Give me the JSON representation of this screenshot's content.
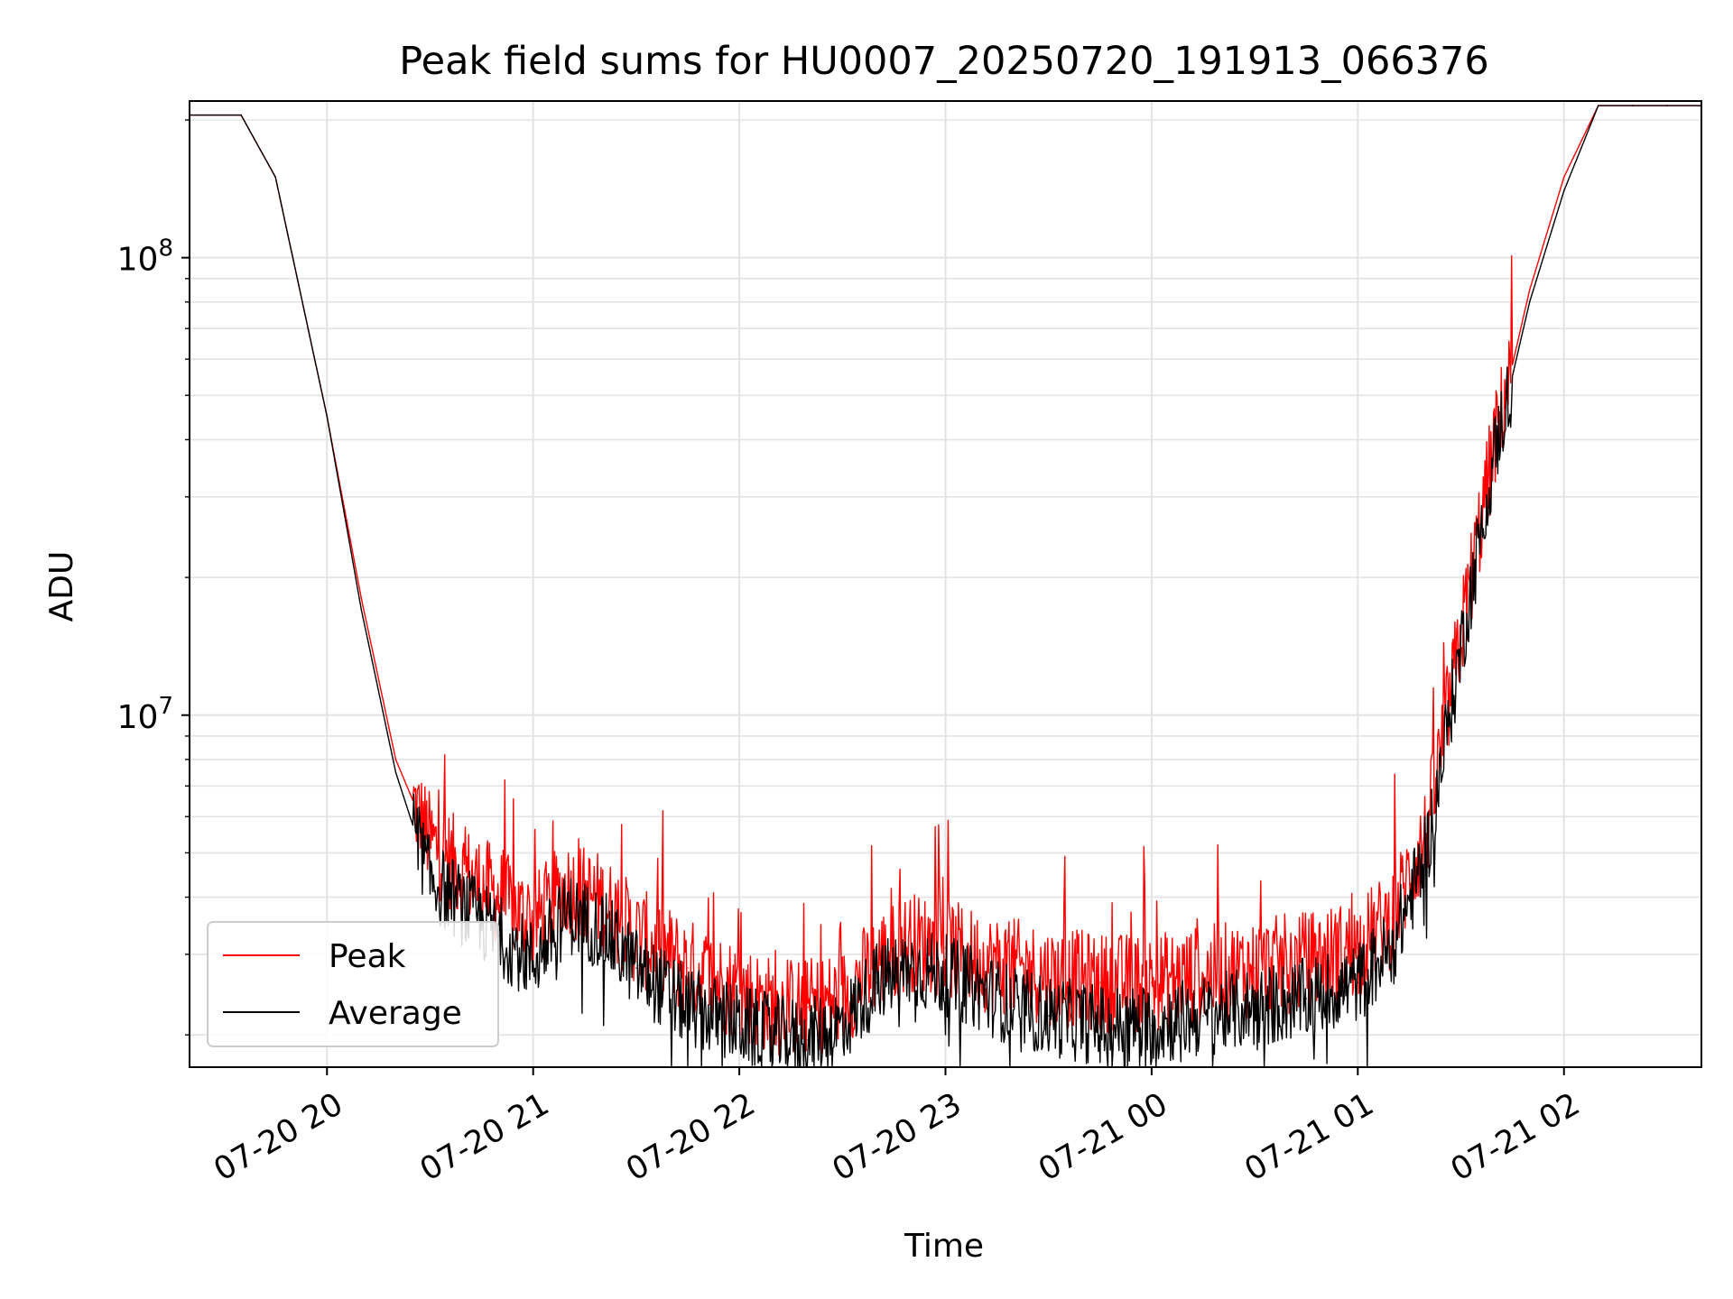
{
  "chart_data": {
    "type": "line",
    "title": "Peak field sums for HU0007_20250720_191913_066376",
    "xlabel": "Time",
    "ylabel": "ADU",
    "y_scale": "log",
    "grid": true,
    "legend_position": "lower-left",
    "xlim": [
      "2025-07-20 19:20",
      "2025-07-21 02:40"
    ],
    "ylim": [
      1700000,
      220000000
    ],
    "x_ticks": [
      {
        "value": "2025-07-20 20:00",
        "label": "07-20 20"
      },
      {
        "value": "2025-07-20 21:00",
        "label": "07-20 21"
      },
      {
        "value": "2025-07-20 22:00",
        "label": "07-20 22"
      },
      {
        "value": "2025-07-20 23:00",
        "label": "07-20 23"
      },
      {
        "value": "2025-07-21 00:00",
        "label": "07-21 00"
      },
      {
        "value": "2025-07-21 01:00",
        "label": "07-21 01"
      },
      {
        "value": "2025-07-21 02:00",
        "label": "07-21 02"
      }
    ],
    "y_ticks": [
      {
        "value": 10000000,
        "label_base": "10",
        "label_exp": "7"
      },
      {
        "value": 100000000,
        "label_base": "10",
        "label_exp": "8"
      }
    ],
    "x": [
      "2025-07-20 19:20",
      "2025-07-20 19:35",
      "2025-07-20 19:45",
      "2025-07-20 20:00",
      "2025-07-20 20:10",
      "2025-07-20 20:20",
      "2025-07-20 20:30",
      "2025-07-20 20:40",
      "2025-07-20 20:50",
      "2025-07-20 21:00",
      "2025-07-20 21:10",
      "2025-07-20 21:20",
      "2025-07-20 21:30",
      "2025-07-20 21:45",
      "2025-07-20 22:00",
      "2025-07-20 22:10",
      "2025-07-20 22:20",
      "2025-07-20 22:30",
      "2025-07-20 22:40",
      "2025-07-20 22:50",
      "2025-07-20 23:00",
      "2025-07-20 23:10",
      "2025-07-20 23:20",
      "2025-07-20 23:30",
      "2025-07-20 23:45",
      "2025-07-21 00:00",
      "2025-07-21 00:15",
      "2025-07-21 00:30",
      "2025-07-21 00:45",
      "2025-07-21 01:00",
      "2025-07-21 01:10",
      "2025-07-21 01:20",
      "2025-07-21 01:30",
      "2025-07-21 01:40",
      "2025-07-21 01:50",
      "2025-07-21 02:00",
      "2025-07-21 02:10",
      "2025-07-21 02:20",
      "2025-07-21 02:30",
      "2025-07-21 02:40"
    ],
    "series": [
      {
        "name": "Peak",
        "color": "#ff0000",
        "values": [
          205000000,
          205000000,
          150000000,
          45000000,
          18000000,
          8000000,
          5300000,
          4500000,
          4000000,
          3500000,
          4200000,
          3900000,
          3300000,
          2800000,
          2500000,
          2300000,
          2300000,
          2400000,
          2900000,
          3200000,
          3100000,
          2900000,
          2800000,
          2700000,
          2600000,
          2600000,
          2700000,
          2800000,
          2900000,
          3100000,
          3600000,
          5500000,
          15000000,
          40000000,
          85000000,
          150000000,
          215000000,
          215000000,
          215000000,
          215000000
        ]
      },
      {
        "name": "Average",
        "color": "#000000",
        "values": [
          205000000,
          205000000,
          150000000,
          45000000,
          17000000,
          7500000,
          4400000,
          3800000,
          3300000,
          2900000,
          3700000,
          3400000,
          2800000,
          2300000,
          2100000,
          2000000,
          1950000,
          2100000,
          2600000,
          2800000,
          2700000,
          2500000,
          2300000,
          2200000,
          2100000,
          2100000,
          2200000,
          2300000,
          2400000,
          2600000,
          3100000,
          5000000,
          14000000,
          38000000,
          80000000,
          140000000,
          215000000,
          215000000,
          215000000,
          215000000
        ]
      }
    ]
  }
}
